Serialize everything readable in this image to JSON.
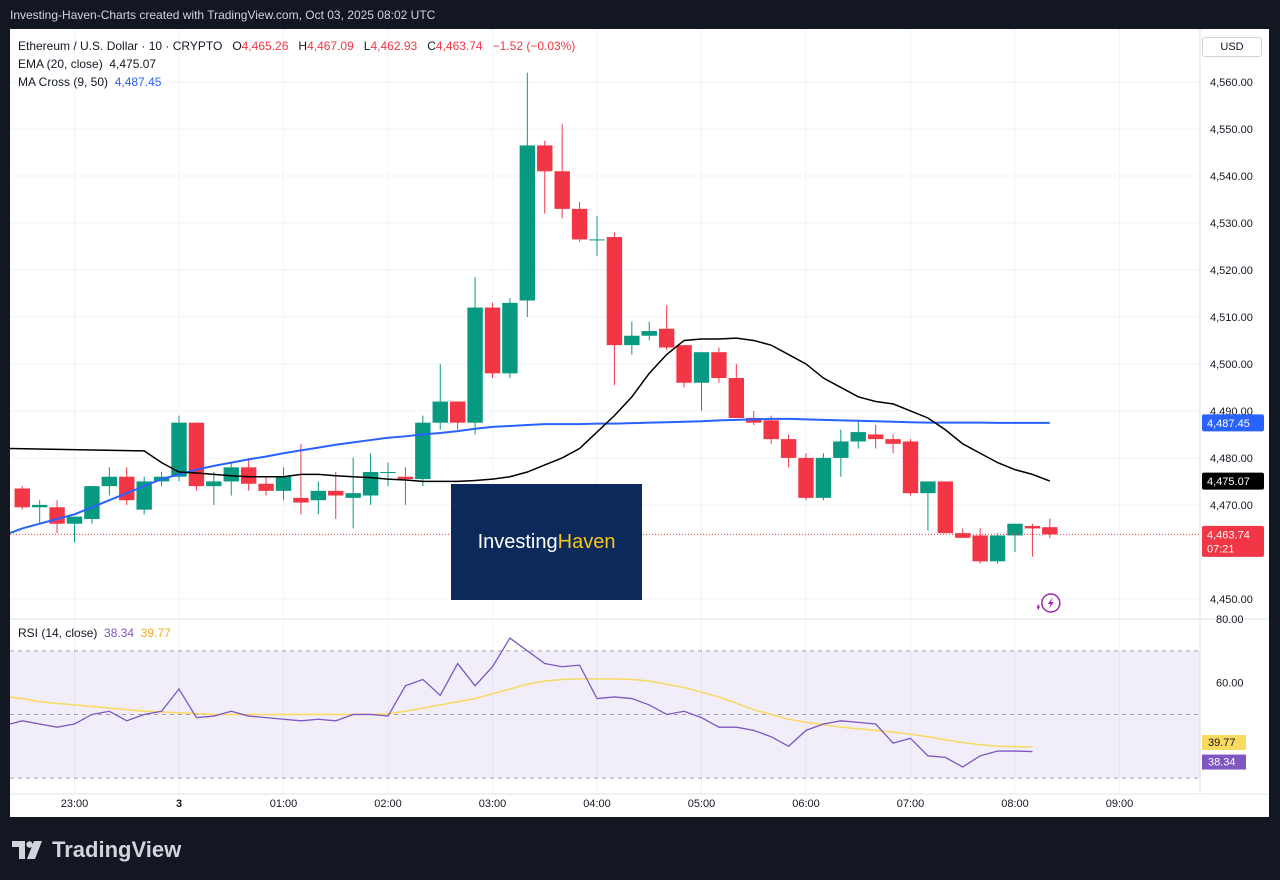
{
  "header": {
    "watermark_text": "Investing-Haven-Charts created with TradingView.com, Oct 03, 2025 08:02 UTC"
  },
  "legend": {
    "symbol": "Ethereum / U.S. Dollar · 10 · CRYPTO",
    "o_label": "O",
    "o_value": "4,465.26",
    "h_label": "H",
    "h_value": "4,467.09",
    "l_label": "L",
    "l_value": "4,462.93",
    "c_label": "C",
    "c_value": "4,463.74",
    "change": "−1.52 (−0.03%)",
    "ema_label": "EMA (20, close)",
    "ema_value": "4,475.07",
    "ma_label": "MA Cross (9, 50)",
    "ma_value": "4,487.45"
  },
  "rsi_legend": {
    "label": "RSI (14, close)",
    "value1": "38.34",
    "value2": "39.77"
  },
  "currency": "USD",
  "brand": {
    "name": "TradingView",
    "watermark_part1": "Investing",
    "watermark_part2": "Haven"
  },
  "colors": {
    "up": "#089981",
    "down": "#f23645",
    "ema": "#000000",
    "ma": "#2962ff",
    "rsi": "#7e57c2",
    "rsi_ma": "#f9d95e"
  },
  "chart_data": [
    {
      "type": "candlestick",
      "title": "Ethereum / U.S. Dollar · 10 · CRYPTO",
      "y_ticks": [
        "4,560.00",
        "4,550.00",
        "4,540.00",
        "4,530.00",
        "4,520.00",
        "4,510.00",
        "4,500.00",
        "4,490.00",
        "4,480.00",
        "4,470.00",
        "4,450.00"
      ],
      "y_tick_values": [
        4560,
        4550,
        4540,
        4530,
        4520,
        4510,
        4500,
        4490,
        4480,
        4470,
        4450
      ],
      "ylim": [
        4447,
        4570
      ],
      "x_tick_labels": [
        "23:00",
        "3",
        "01:00",
        "02:00",
        "03:00",
        "04:00",
        "05:00",
        "06:00",
        "07:00",
        "08:00",
        "09:00"
      ],
      "x_ticks_hours": [
        -1,
        0,
        1,
        2,
        3,
        4,
        5,
        6,
        7,
        8,
        9
      ],
      "time_start": "22:30",
      "candle_interval_min": 10,
      "candles": [
        [
          4473.5,
          4474.0,
          4469.0,
          4469.5
        ],
        [
          4469.5,
          4471.0,
          4466.0,
          4470.0
        ],
        [
          4469.5,
          4471.0,
          4464.0,
          4466.0
        ],
        [
          4466.0,
          4467.5,
          4462.0,
          4467.5
        ],
        [
          4467.0,
          4474.0,
          4466.0,
          4474.0
        ],
        [
          4474.0,
          4478.0,
          4472.0,
          4476.0
        ],
        [
          4476.0,
          4478.0,
          4470.0,
          4471.0
        ],
        [
          4469.0,
          4476.0,
          4468.0,
          4475.0
        ],
        [
          4475.0,
          4477.0,
          4474.0,
          4476.0
        ],
        [
          4476.0,
          4489.0,
          4475.0,
          4487.5
        ],
        [
          4487.5,
          4487.5,
          4473.0,
          4474.0
        ],
        [
          4474.0,
          4477.0,
          4470.0,
          4475.0
        ],
        [
          4475.0,
          4479.0,
          4472.0,
          4478.0
        ],
        [
          4478.0,
          4480.0,
          4473.0,
          4474.5
        ],
        [
          4474.5,
          4476.0,
          4472.0,
          4473.0
        ],
        [
          4473.0,
          4478.0,
          4471.0,
          4476.0
        ],
        [
          4471.5,
          4483.0,
          4468.0,
          4470.5
        ],
        [
          4471.0,
          4475.0,
          4468.0,
          4473.0
        ],
        [
          4473.0,
          4477.0,
          4467.0,
          4472.0
        ],
        [
          4471.5,
          4480.0,
          4465.0,
          4472.5
        ],
        [
          4472.0,
          4481.0,
          4470.0,
          4477.0
        ],
        [
          4477.0,
          4479.0,
          4474.0,
          4477.0
        ],
        [
          4476.0,
          4478.0,
          4470.0,
          4475.5
        ],
        [
          4475.5,
          4489.0,
          4474.0,
          4487.5
        ],
        [
          4487.5,
          4500.0,
          4486.0,
          4492.0
        ],
        [
          4492.0,
          4492.0,
          4486.0,
          4487.5
        ],
        [
          4487.5,
          4518.5,
          4485.0,
          4512.0
        ],
        [
          4512.0,
          4513.0,
          4497.0,
          4498.0
        ],
        [
          4498.0,
          4514.0,
          4497.0,
          4513.0
        ],
        [
          4513.5,
          4562.0,
          4510.0,
          4546.5
        ],
        [
          4546.5,
          4547.5,
          4532.0,
          4541.0
        ],
        [
          4541.0,
          4551.0,
          4531.0,
          4533.0
        ],
        [
          4533.0,
          4534.5,
          4526.0,
          4526.5
        ],
        [
          4526.5,
          4531.5,
          4523.0,
          4526.5
        ],
        [
          4527.0,
          4528.0,
          4495.5,
          4504.0
        ],
        [
          4504.0,
          4509.0,
          4502.0,
          4506.0
        ],
        [
          4506.0,
          4509.0,
          4505.0,
          4507.0
        ],
        [
          4507.5,
          4512.5,
          4503.0,
          4503.5
        ],
        [
          4504.0,
          4504.0,
          4495.0,
          4496.0
        ],
        [
          4496.0,
          4502.5,
          4490.0,
          4502.5
        ],
        [
          4502.5,
          4503.5,
          4496.0,
          4497.0
        ],
        [
          4497.0,
          4500.0,
          4489.0,
          4488.5
        ],
        [
          4488.5,
          4490.0,
          4487.0,
          4487.5
        ],
        [
          4488.0,
          4489.0,
          4483.0,
          4484.0
        ],
        [
          4484.0,
          4485.0,
          4478.0,
          4480.0
        ],
        [
          4480.0,
          4481.0,
          4471.0,
          4471.5
        ],
        [
          4471.5,
          4481.0,
          4471.0,
          4480.0
        ],
        [
          4480.0,
          4486.0,
          4476.0,
          4483.5
        ],
        [
          4483.5,
          4488.0,
          4482.0,
          4485.5
        ],
        [
          4485.0,
          4487.0,
          4482.0,
          4484.0
        ],
        [
          4484.0,
          4485.0,
          4481.0,
          4483.0
        ],
        [
          4483.5,
          4484.0,
          4472.0,
          4472.5
        ],
        [
          4472.5,
          4475.0,
          4464.5,
          4475.0
        ],
        [
          4475.0,
          4475.0,
          4464.0,
          4464.0
        ],
        [
          4464.0,
          4465.0,
          4463.0,
          4463.0
        ],
        [
          4463.5,
          4465.0,
          4457.5,
          4458.0
        ],
        [
          4458.0,
          4464.0,
          4457.5,
          4463.5
        ],
        [
          4463.5,
          4466.0,
          4460.0,
          4466.0
        ],
        [
          4465.5,
          4466.0,
          4459.0,
          4465.0
        ],
        [
          4465.26,
          4467.09,
          4462.93,
          4463.74
        ]
      ],
      "ema": [
        4481.5,
        4479.0,
        4477.0,
        4476.8,
        4476.5,
        4476.2,
        4476.0,
        4476.0,
        4476.0,
        4476.5,
        4476.5,
        4476.2,
        4476.0,
        4475.8,
        4475.5,
        4475.3,
        4475.0,
        4475.0,
        4475.0,
        4475.2,
        4475.5,
        4476.0,
        4477.0,
        4478.5,
        4480.0,
        4482.0,
        4485.5,
        4489.0,
        4493.0,
        4498.0,
        4502.0,
        4505.0,
        4505.3,
        4505.3,
        4505.5,
        4505.0,
        4504.0,
        4502.0,
        4500.0,
        4497.0,
        4495.0,
        4493.0,
        4492.0,
        4491.5,
        4490.0,
        4488.5,
        4486.0,
        4483.0,
        4481.0,
        4479.0,
        4477.5,
        4476.5,
        4475.07
      ],
      "ema_start_index": 7,
      "ma": [
        4465.0,
        4466.0,
        4467.0,
        4468.0,
        4469.5,
        4471.0,
        4472.5,
        4474.0,
        4475.5,
        4476.5,
        4477.5,
        4478.3,
        4479.0,
        4479.7,
        4480.3,
        4481.0,
        4481.6,
        4482.2,
        4482.8,
        4483.3,
        4483.8,
        4484.3,
        4484.6,
        4485.0,
        4485.3,
        4485.7,
        4486.2,
        4486.6,
        4486.8,
        4487.0,
        4487.2,
        4487.2,
        4487.2,
        4487.3,
        4487.3,
        4487.4,
        4487.5,
        4487.6,
        4487.7,
        4487.8,
        4488.0,
        4488.1,
        4488.2,
        4488.3,
        4488.3,
        4488.2,
        4488.1,
        4488.0,
        4487.9,
        4487.8,
        4487.7,
        4487.6,
        4487.5,
        4487.5,
        4487.5,
        4487.5,
        4487.45,
        4487.45,
        4487.45,
        4487.45
      ],
      "current_price_label": "4,463.74",
      "countdown": "07:21",
      "ema_label": "4,475.07",
      "ma_label": "4,487.45"
    },
    {
      "type": "line",
      "title": "RSI (14, close)",
      "y_ticks": [
        "80.00",
        "60.00"
      ],
      "y_tick_values": [
        80,
        60
      ],
      "ylim": [
        25,
        80
      ],
      "bands": [
        30,
        50,
        70
      ],
      "rsi": [
        48,
        47,
        46,
        47,
        50,
        51,
        48,
        50,
        51,
        58,
        49,
        49.5,
        51,
        49.5,
        49,
        48.5,
        48,
        48.5,
        48,
        50,
        50,
        49.5,
        59,
        61,
        56,
        66,
        59,
        65,
        74,
        70,
        66,
        65,
        65.5,
        55,
        55.5,
        55,
        53,
        50,
        51,
        49,
        46,
        46,
        45,
        43,
        40,
        45,
        47,
        48,
        47.5,
        47,
        41,
        42.5,
        37,
        36.5,
        33.5,
        37,
        38.5,
        38.5,
        38.34
      ],
      "rsi_ma": [
        55,
        54,
        53.5,
        53,
        52.5,
        52,
        51.5,
        51,
        50.8,
        50.5,
        50.3,
        50,
        50,
        50,
        50,
        50,
        50,
        50,
        50,
        50,
        50,
        50.2,
        51,
        52,
        53,
        54,
        55,
        56.5,
        58,
        59.5,
        60.5,
        61,
        61.2,
        61.2,
        61.2,
        61,
        60.5,
        59.5,
        58.5,
        57,
        55.5,
        53.5,
        51.5,
        50,
        48.5,
        47.5,
        46.8,
        46,
        45.5,
        45,
        44.5,
        43.8,
        43,
        42,
        41.2,
        40.5,
        40,
        39.9,
        39.77
      ],
      "value_labels": [
        "39.77",
        "38.34"
      ]
    }
  ]
}
